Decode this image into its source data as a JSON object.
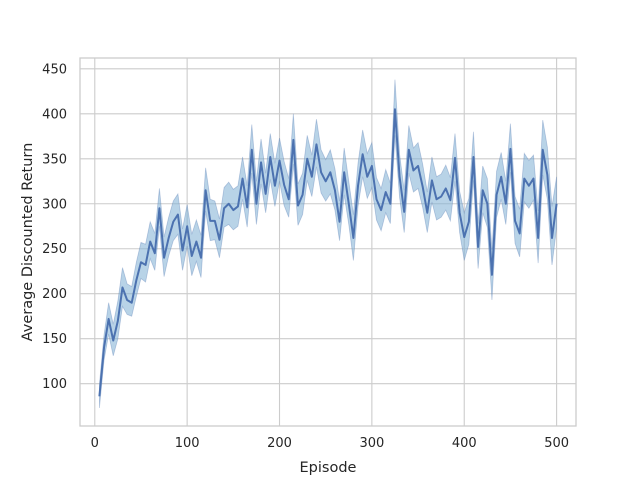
{
  "chart_data": {
    "type": "line",
    "title": "",
    "xlabel": "Episode",
    "ylabel": "Average Discounted Return",
    "xlim": [
      -16,
      521
    ],
    "ylim": [
      53,
      462
    ],
    "xticks": [
      0,
      100,
      200,
      300,
      400,
      500
    ],
    "yticks": [
      100,
      150,
      200,
      250,
      300,
      350,
      400,
      450
    ],
    "grid": true,
    "legend": "none",
    "line_color": "#4c72b0",
    "band_color": "#7eaed3",
    "series": [
      {
        "x": [
          5,
          10,
          15,
          20,
          25,
          30,
          35,
          40,
          45,
          50,
          55,
          60,
          65,
          70,
          75,
          80,
          85,
          90,
          95,
          100,
          105,
          110,
          115,
          120,
          125,
          130,
          135,
          140,
          145,
          150,
          155,
          160,
          165,
          170,
          175,
          180,
          185,
          190,
          195,
          200,
          205,
          210,
          215,
          220,
          225,
          230,
          235,
          240,
          245,
          250,
          255,
          260,
          265,
          270,
          275,
          280,
          285,
          290,
          295,
          300,
          305,
          310,
          315,
          320,
          325,
          330,
          335,
          340,
          345,
          350,
          355,
          360,
          365,
          370,
          375,
          380,
          385,
          390,
          395,
          400,
          405,
          410,
          415,
          420,
          425,
          430,
          435,
          440,
          445,
          450,
          455,
          460,
          465,
          470,
          475,
          480,
          485,
          490,
          495,
          500
        ],
        "y": [
          86,
          140,
          172,
          148,
          170,
          207,
          193,
          190,
          215,
          235,
          232,
          258,
          245,
          295,
          240,
          262,
          280,
          288,
          248,
          275,
          242,
          258,
          240,
          315,
          281,
          281,
          260,
          295,
          300,
          293,
          297,
          328,
          296,
          360,
          300,
          346,
          311,
          352,
          320,
          348,
          321,
          305,
          371,
          298,
          310,
          350,
          330,
          366,
          335,
          325,
          335,
          315,
          280,
          335,
          300,
          262,
          320,
          355,
          330,
          342,
          305,
          293,
          313,
          300,
          405,
          330,
          291,
          360,
          337,
          342,
          319,
          290,
          326,
          305,
          308,
          317,
          304,
          351,
          290,
          263,
          280,
          352,
          252,
          315,
          300,
          221,
          310,
          330,
          300,
          361,
          281,
          267,
          328,
          320,
          328,
          262,
          360,
          332,
          262,
          300
        ],
        "lower": [
          73,
          126,
          155,
          131,
          150,
          186,
          177,
          175,
          197,
          217,
          213,
          239,
          226,
          275,
          219,
          242,
          259,
          266,
          226,
          253,
          220,
          236,
          218,
          292,
          259,
          260,
          240,
          274,
          277,
          271,
          275,
          305,
          274,
          334,
          277,
          322,
          290,
          327,
          297,
          325,
          298,
          285,
          344,
          276,
          288,
          326,
          308,
          341,
          312,
          303,
          311,
          293,
          259,
          310,
          277,
          237,
          297,
          330,
          306,
          318,
          282,
          270,
          290,
          278,
          376,
          307,
          268,
          334,
          313,
          317,
          296,
          268,
          302,
          282,
          285,
          293,
          281,
          325,
          268,
          237,
          255,
          326,
          228,
          290,
          274,
          193,
          285,
          305,
          277,
          335,
          256,
          241,
          302,
          295,
          304,
          234,
          332,
          305,
          232,
          273
        ],
        "upper": [
          99,
          154,
          190,
          166,
          192,
          229,
          211,
          208,
          235,
          257,
          255,
          280,
          267,
          317,
          263,
          285,
          303,
          311,
          272,
          299,
          266,
          282,
          265,
          340,
          305,
          303,
          283,
          318,
          324,
          316,
          320,
          352,
          320,
          388,
          325,
          372,
          334,
          378,
          345,
          373,
          347,
          328,
          400,
          322,
          334,
          376,
          354,
          394,
          360,
          349,
          360,
          339,
          303,
          362,
          325,
          288,
          345,
          382,
          356,
          368,
          329,
          317,
          338,
          323,
          438,
          355,
          315,
          387,
          362,
          368,
          344,
          313,
          352,
          330,
          333,
          343,
          329,
          378,
          314,
          290,
          306,
          380,
          278,
          342,
          328,
          249,
          336,
          357,
          325,
          389,
          308,
          294,
          356,
          348,
          354,
          292,
          393,
          363,
          297,
          330
        ]
      }
    ]
  }
}
